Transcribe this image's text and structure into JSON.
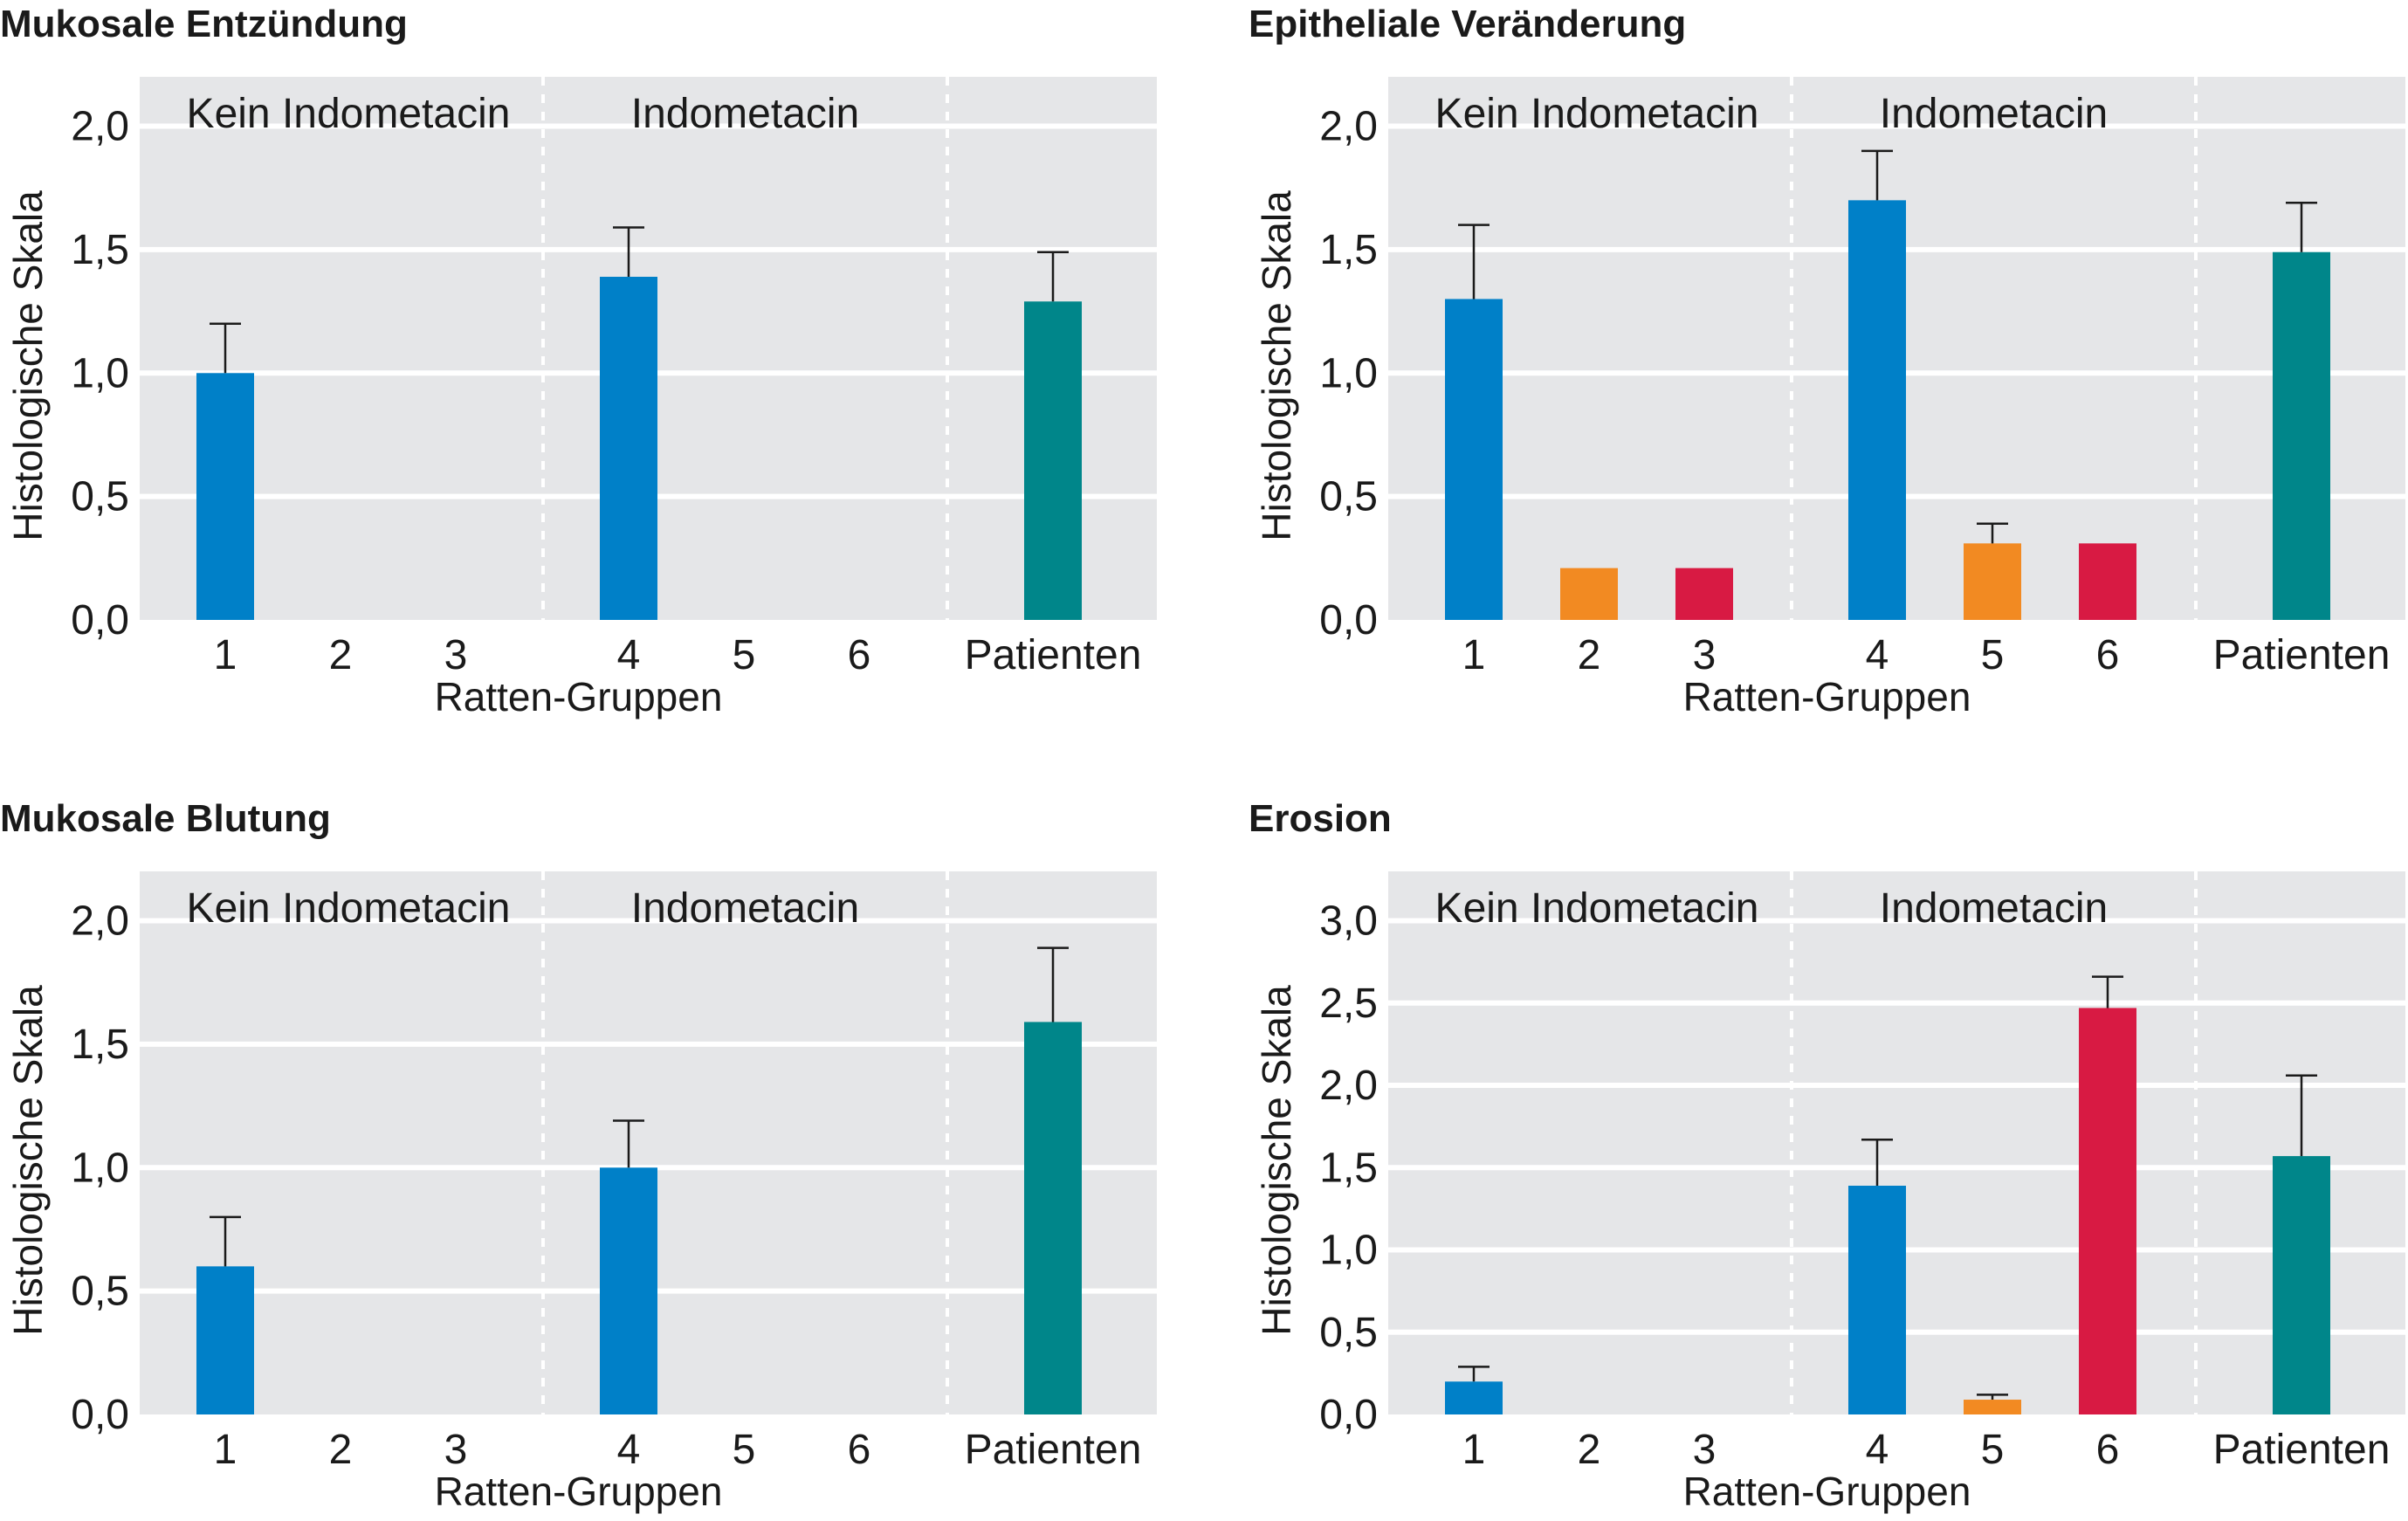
{
  "colors": {
    "blue": "#0080c8",
    "orange": "#f28a22",
    "red": "#d81a43",
    "teal": "#00868a"
  },
  "chart_data": [
    {
      "type": "bar",
      "title": "Mukosale Entzündung",
      "xlabel": "Ratten-Gruppen",
      "ylabel": "Histologische Skala",
      "ylim": [
        0,
        2.2
      ],
      "yticks": [
        "0,0",
        "0,5",
        "1,0",
        "1,5",
        "2,0"
      ],
      "ytick_values": [
        0,
        0.5,
        1.0,
        1.5,
        2.0
      ],
      "group_labels": [
        "Kein Indometacin",
        "Indometacin"
      ],
      "categories": [
        "1",
        "2",
        "3",
        "4",
        "5",
        "6",
        "Patienten"
      ],
      "values": [
        1.0,
        0,
        0,
        1.39,
        0,
        0,
        1.29
      ],
      "errors": [
        0.2,
        0,
        0,
        0.2,
        0,
        0,
        0.2
      ],
      "bar_colors": [
        "blue",
        "orange",
        "red",
        "blue",
        "orange",
        "red",
        "teal"
      ],
      "grid": true
    },
    {
      "type": "bar",
      "title": "Epitheliale Veränderung",
      "xlabel": "Ratten-Gruppen",
      "ylabel": "Histologische Skala",
      "ylim": [
        0,
        2.2
      ],
      "yticks": [
        "0,0",
        "0,5",
        "1,0",
        "1,5",
        "2,0"
      ],
      "ytick_values": [
        0,
        0.5,
        1.0,
        1.5,
        2.0
      ],
      "group_labels": [
        "Kein Indometacin",
        "Indometacin"
      ],
      "categories": [
        "1",
        "2",
        "3",
        "4",
        "5",
        "6",
        "Patienten"
      ],
      "values": [
        1.3,
        0.21,
        0.21,
        1.7,
        0.31,
        0.31,
        1.49
      ],
      "errors": [
        0.3,
        0,
        0,
        0.2,
        0.08,
        0,
        0.2
      ],
      "bar_colors": [
        "blue",
        "orange",
        "red",
        "blue",
        "orange",
        "red",
        "teal"
      ],
      "grid": true
    },
    {
      "type": "bar",
      "title": "Mukosale Blutung",
      "xlabel": "Ratten-Gruppen",
      "ylabel": "Histologische Skala",
      "ylim": [
        0,
        2.2
      ],
      "yticks": [
        "0,0",
        "0,5",
        "1,0",
        "1,5",
        "2,0"
      ],
      "ytick_values": [
        0,
        0.5,
        1.0,
        1.5,
        2.0
      ],
      "group_labels": [
        "Kein Indometacin",
        "Indometacin"
      ],
      "categories": [
        "1",
        "2",
        "3",
        "4",
        "5",
        "6",
        "Patienten"
      ],
      "values": [
        0.6,
        0,
        0,
        1.0,
        0,
        0,
        1.59
      ],
      "errors": [
        0.2,
        0,
        0,
        0.19,
        0,
        0,
        0.3
      ],
      "bar_colors": [
        "blue",
        "orange",
        "red",
        "blue",
        "orange",
        "red",
        "teal"
      ],
      "grid": true
    },
    {
      "type": "bar",
      "title": "Erosion",
      "xlabel": "Ratten-Gruppen",
      "ylabel": "Histologische Skala",
      "ylim": [
        0,
        3.3
      ],
      "yticks": [
        "0,0",
        "0,5",
        "1,0",
        "1,5",
        "2,0",
        "2,5",
        "3,0"
      ],
      "ytick_values": [
        0,
        0.5,
        1.0,
        1.5,
        2.0,
        2.5,
        3.0
      ],
      "group_labels": [
        "Kein Indometacin",
        "Indometacin"
      ],
      "categories": [
        "1",
        "2",
        "3",
        "4",
        "5",
        "6",
        "Patienten"
      ],
      "values": [
        0.2,
        0,
        0,
        1.39,
        0.09,
        2.47,
        1.57
      ],
      "errors": [
        0.09,
        0,
        0,
        0.28,
        0.03,
        0.19,
        0.49
      ],
      "bar_colors": [
        "blue",
        "orange",
        "red",
        "blue",
        "orange",
        "red",
        "teal"
      ],
      "grid": true
    }
  ]
}
